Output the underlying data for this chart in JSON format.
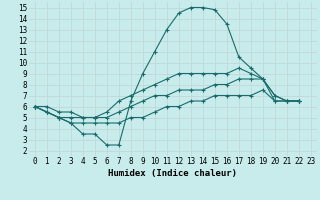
{
  "xlabel": "Humidex (Indice chaleur)",
  "ylabel": "",
  "bg_color": "#c8ecec",
  "grid_color": "#c0d8d8",
  "line_color": "#1a6b6b",
  "xlim": [
    -0.5,
    23.5
  ],
  "ylim": [
    1.5,
    15.5
  ],
  "xticks": [
    0,
    1,
    2,
    3,
    4,
    5,
    6,
    7,
    8,
    9,
    10,
    11,
    12,
    13,
    14,
    15,
    16,
    17,
    18,
    19,
    20,
    21,
    22,
    23
  ],
  "yticks": [
    2,
    3,
    4,
    5,
    6,
    7,
    8,
    9,
    10,
    11,
    12,
    13,
    14,
    15
  ],
  "series": [
    [
      6.0,
      5.5,
      5.0,
      4.5,
      3.5,
      3.5,
      2.5,
      2.5,
      6.5,
      9.0,
      11.0,
      13.0,
      14.5,
      15.0,
      15.0,
      14.8,
      13.5,
      10.5,
      9.5,
      8.5,
      7.0,
      6.5,
      6.5
    ],
    [
      6.0,
      6.0,
      5.5,
      5.5,
      5.0,
      5.0,
      5.5,
      6.5,
      7.0,
      7.5,
      8.0,
      8.5,
      9.0,
      9.0,
      9.0,
      9.0,
      9.0,
      9.5,
      9.0,
      8.5,
      7.0,
      6.5,
      6.5
    ],
    [
      6.0,
      5.5,
      5.0,
      5.0,
      5.0,
      5.0,
      5.0,
      5.5,
      6.0,
      6.5,
      7.0,
      7.0,
      7.5,
      7.5,
      7.5,
      8.0,
      8.0,
      8.5,
      8.5,
      8.5,
      6.5,
      6.5,
      6.5
    ],
    [
      6.0,
      5.5,
      5.0,
      4.5,
      4.5,
      4.5,
      4.5,
      4.5,
      5.0,
      5.0,
      5.5,
      6.0,
      6.0,
      6.5,
      6.5,
      7.0,
      7.0,
      7.0,
      7.0,
      7.5,
      6.5,
      6.5,
      6.5
    ]
  ],
  "tick_fontsize": 5.5,
  "xlabel_fontsize": 6.5,
  "linewidth": 0.8,
  "markersize": 3.5,
  "markeredgewidth": 0.8
}
